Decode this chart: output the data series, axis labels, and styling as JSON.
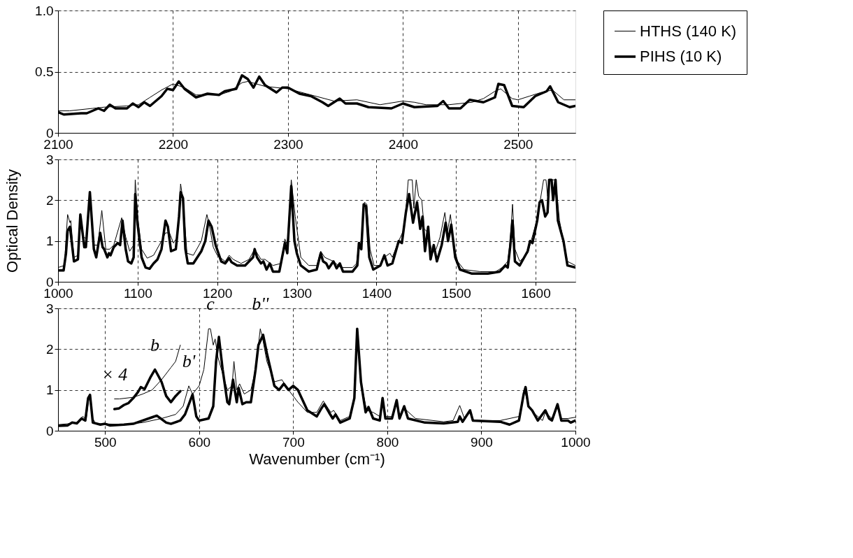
{
  "chart_data": [
    {
      "type": "line",
      "xlim": [
        2100,
        2550
      ],
      "ylim": [
        0,
        1
      ],
      "xticks": [
        2100,
        2200,
        2300,
        2400,
        2500
      ],
      "yticks": [
        0,
        0.5,
        {
          "value": 1,
          "label": "1.0"
        }
      ],
      "grid": true,
      "legend": "right",
      "line_style": "solid",
      "series": [
        {
          "name": "HTHS (140 K)",
          "color": "#000000",
          "x": [
            2100,
            2110,
            2130,
            2140,
            2160,
            2170,
            2180,
            2190,
            2200,
            2210,
            2220,
            2240,
            2250,
            2260,
            2265,
            2280,
            2300,
            2320,
            2340,
            2360,
            2380,
            2400,
            2410,
            2420,
            2440,
            2460,
            2470,
            2480,
            2485,
            2495,
            2500,
            2510,
            2520,
            2530,
            2540,
            2550
          ],
          "values": [
            0.18,
            0.18,
            0.2,
            0.21,
            0.22,
            0.23,
            0.29,
            0.35,
            0.4,
            0.37,
            0.31,
            0.31,
            0.34,
            0.41,
            0.42,
            0.38,
            0.36,
            0.31,
            0.26,
            0.27,
            0.23,
            0.26,
            0.25,
            0.23,
            0.23,
            0.25,
            0.28,
            0.34,
            0.36,
            0.28,
            0.27,
            0.3,
            0.33,
            0.35,
            0.27,
            0.27
          ]
        },
        {
          "name": "PIHS (10 K)",
          "color": "#000000",
          "x": [
            2100,
            2105,
            2120,
            2125,
            2135,
            2140,
            2145,
            2150,
            2160,
            2165,
            2170,
            2175,
            2180,
            2190,
            2195,
            2200,
            2205,
            2210,
            2220,
            2230,
            2240,
            2245,
            2255,
            2260,
            2265,
            2270,
            2275,
            2280,
            2290,
            2295,
            2300,
            2310,
            2320,
            2330,
            2335,
            2345,
            2350,
            2360,
            2370,
            2390,
            2400,
            2410,
            2430,
            2435,
            2440,
            2450,
            2458,
            2470,
            2480,
            2483,
            2488,
            2495,
            2505,
            2515,
            2525,
            2528,
            2535,
            2545,
            2550
          ],
          "values": [
            0.17,
            0.15,
            0.16,
            0.16,
            0.2,
            0.18,
            0.23,
            0.2,
            0.2,
            0.24,
            0.21,
            0.25,
            0.22,
            0.3,
            0.36,
            0.35,
            0.42,
            0.36,
            0.29,
            0.32,
            0.31,
            0.34,
            0.36,
            0.47,
            0.44,
            0.37,
            0.46,
            0.39,
            0.33,
            0.37,
            0.37,
            0.32,
            0.3,
            0.25,
            0.22,
            0.28,
            0.24,
            0.24,
            0.21,
            0.2,
            0.24,
            0.21,
            0.22,
            0.26,
            0.2,
            0.2,
            0.27,
            0.25,
            0.29,
            0.4,
            0.39,
            0.22,
            0.21,
            0.3,
            0.34,
            0.38,
            0.25,
            0.21,
            0.22
          ]
        }
      ]
    },
    {
      "type": "line",
      "xlim": [
        1000,
        1650
      ],
      "ylim": [
        0,
        3
      ],
      "xticks": [
        1000,
        1100,
        1200,
        1300,
        1400,
        1500,
        1600
      ],
      "yticks": [
        0,
        1,
        2,
        3
      ],
      "grid": true,
      "ylabel": "Optical Density",
      "line_style": "solid",
      "series": [
        {
          "color": "#000000",
          "x": [
            1000,
            1008,
            1012,
            1015,
            1016,
            1020,
            1025,
            1028,
            1032,
            1036,
            1040,
            1045,
            1050,
            1055,
            1060,
            1065,
            1070,
            1080,
            1085,
            1090,
            1095,
            1097,
            1100,
            1105,
            1112,
            1120,
            1130,
            1135,
            1140,
            1145,
            1150,
            1154,
            1157,
            1162,
            1170,
            1180,
            1187,
            1190,
            1195,
            1200,
            1210,
            1215,
            1220,
            1230,
            1240,
            1247,
            1255,
            1260,
            1270,
            1280,
            1285,
            1288,
            1293,
            1298,
            1305,
            1315,
            1325,
            1330,
            1335,
            1346,
            1355,
            1370,
            1375,
            1378,
            1381,
            1385,
            1388,
            1392,
            1397,
            1405,
            1410,
            1417,
            1420,
            1428,
            1435,
            1440,
            1445,
            1447,
            1450,
            1453,
            1457,
            1460,
            1465,
            1470,
            1475,
            1480,
            1486,
            1489,
            1493,
            1497,
            1502,
            1510,
            1530,
            1550,
            1558,
            1565,
            1568,
            1571,
            1574,
            1580,
            1590,
            1600,
            1605,
            1610,
            1613,
            1615,
            1618,
            1625,
            1630,
            1640,
            1650
          ],
          "values": [
            0.35,
            0.4,
            1.65,
            1.45,
            1.5,
            0.6,
            0.65,
            1.6,
            1.1,
            1.05,
            2.15,
            0.9,
            0.9,
            1.75,
            0.8,
            0.8,
            0.9,
            1.57,
            1.1,
            0.75,
            0.9,
            2.5,
            1.6,
            0.8,
            0.58,
            0.65,
            1.0,
            1.2,
            1.2,
            0.95,
            1.1,
            2.4,
            2.0,
            0.7,
            0.65,
            1.0,
            1.65,
            1.4,
            0.85,
            0.65,
            0.5,
            0.65,
            0.55,
            0.45,
            0.55,
            0.8,
            0.55,
            0.55,
            0.4,
            0.45,
            1.05,
            0.9,
            2.5,
            1.6,
            0.6,
            0.4,
            0.4,
            0.75,
            0.6,
            0.5,
            0.35,
            0.35,
            0.45,
            0.95,
            1.0,
            1.95,
            1.9,
            0.8,
            0.4,
            0.4,
            0.6,
            0.7,
            0.6,
            1.0,
            1.3,
            2.5,
            2.5,
            1.8,
            2.5,
            2.1,
            2.0,
            1.3,
            1.2,
            0.7,
            0.8,
            1.1,
            1.7,
            1.2,
            1.65,
            0.9,
            0.5,
            0.3,
            0.25,
            0.25,
            0.35,
            0.5,
            1.0,
            1.9,
            0.8,
            0.5,
            0.7,
            1.4,
            1.9,
            2.5,
            2.5,
            2.1,
            2.5,
            2.5,
            1.5,
            0.5,
            0.4
          ]
        },
        {
          "color": "#000000",
          "x": [
            1000,
            1007,
            1010,
            1012,
            1015,
            1020,
            1025,
            1028,
            1033,
            1035,
            1040,
            1045,
            1048,
            1053,
            1056,
            1058,
            1062,
            1064,
            1066,
            1070,
            1075,
            1078,
            1081,
            1085,
            1088,
            1092,
            1095,
            1097,
            1100,
            1105,
            1110,
            1115,
            1120,
            1125,
            1130,
            1135,
            1138,
            1142,
            1148,
            1152,
            1154,
            1157,
            1160,
            1163,
            1170,
            1180,
            1185,
            1189,
            1193,
            1198,
            1205,
            1210,
            1215,
            1218,
            1225,
            1235,
            1245,
            1247,
            1250,
            1255,
            1258,
            1262,
            1266,
            1270,
            1278,
            1285,
            1288,
            1293,
            1297,
            1300,
            1305,
            1315,
            1325,
            1330,
            1333,
            1337,
            1340,
            1346,
            1350,
            1354,
            1358,
            1370,
            1376,
            1378,
            1381,
            1384,
            1387,
            1391,
            1396,
            1405,
            1410,
            1414,
            1420,
            1428,
            1432,
            1437,
            1441,
            1446,
            1451,
            1455,
            1458,
            1461,
            1465,
            1468,
            1472,
            1476,
            1482,
            1487,
            1490,
            1494,
            1499,
            1505,
            1520,
            1540,
            1555,
            1562,
            1565,
            1568,
            1571,
            1574,
            1580,
            1590,
            1593,
            1596,
            1602,
            1605,
            1608,
            1612,
            1615,
            1617,
            1620,
            1622,
            1625,
            1628,
            1635,
            1640,
            1650
          ],
          "values": [
            0.28,
            0.28,
            0.7,
            1.25,
            1.35,
            0.5,
            0.55,
            1.65,
            0.85,
            0.85,
            2.2,
            0.8,
            0.6,
            1.2,
            0.85,
            0.8,
            0.6,
            0.7,
            0.65,
            0.85,
            0.95,
            0.9,
            1.5,
            0.8,
            0.5,
            0.45,
            0.6,
            2.15,
            1.4,
            0.6,
            0.35,
            0.32,
            0.45,
            0.55,
            0.8,
            1.5,
            1.35,
            0.75,
            0.8,
            1.6,
            2.2,
            2.05,
            0.8,
            0.45,
            0.45,
            0.75,
            1.0,
            1.5,
            1.35,
            0.9,
            0.5,
            0.45,
            0.58,
            0.48,
            0.4,
            0.4,
            0.6,
            0.8,
            0.6,
            0.45,
            0.5,
            0.3,
            0.45,
            0.25,
            0.25,
            0.95,
            0.7,
            2.35,
            1.0,
            0.7,
            0.4,
            0.25,
            0.3,
            0.7,
            0.5,
            0.45,
            0.33,
            0.5,
            0.33,
            0.45,
            0.25,
            0.25,
            0.4,
            0.95,
            0.8,
            1.9,
            1.85,
            0.6,
            0.3,
            0.4,
            0.65,
            0.4,
            0.45,
            1.0,
            0.95,
            1.7,
            2.15,
            1.45,
            1.95,
            1.3,
            1.6,
            0.75,
            1.35,
            0.55,
            0.9,
            0.5,
            0.9,
            1.45,
            1.0,
            1.4,
            0.6,
            0.3,
            0.2,
            0.2,
            0.25,
            0.4,
            0.35,
            0.85,
            1.5,
            0.5,
            0.4,
            0.75,
            1.0,
            0.95,
            1.5,
            1.95,
            2.0,
            1.6,
            1.7,
            2.5,
            2.5,
            2.0,
            2.5,
            1.5,
            1.0,
            0.4,
            0.35
          ]
        }
      ]
    },
    {
      "type": "line",
      "xlim": [
        450,
        1000
      ],
      "ylim": [
        0,
        3
      ],
      "xticks": [
        500,
        600,
        700,
        800,
        900,
        1000
      ],
      "yticks": [
        0,
        1,
        2,
        3
      ],
      "grid": true,
      "xlabel": "Wavenumber (cm⁻¹)",
      "line_style": "solid",
      "annotations": [
        {
          "text": "× 4",
          "x": 510,
          "y": 0.78
        },
        {
          "text": "b",
          "x": 553,
          "y": 1.5
        },
        {
          "text": "b'",
          "x": 589,
          "y": 1.1
        },
        {
          "text": "c",
          "x": 612,
          "y": 2.5
        },
        {
          "text": "b''",
          "x": 665,
          "y": 2.5
        }
      ],
      "series": [
        {
          "color": "#000000",
          "x": [
            450,
            460,
            470,
            476,
            480,
            483,
            487,
            490,
            500,
            520,
            540,
            560,
            575,
            583,
            589,
            593,
            600,
            605,
            610,
            612,
            615,
            617,
            620,
            625,
            630,
            635,
            637,
            640,
            643,
            648,
            655,
            660,
            665,
            668,
            672,
            680,
            688,
            695,
            705,
            715,
            725,
            732,
            740,
            743,
            750,
            760,
            765,
            768,
            772,
            778,
            785,
            792,
            795,
            798,
            805,
            810,
            813,
            818,
            830,
            860,
            870,
            877,
            882,
            888,
            892,
            920,
            940,
            946,
            950,
            955,
            965,
            968,
            975,
            981,
            985,
            992,
            1000
          ],
          "values": [
            0.15,
            0.17,
            0.2,
            0.35,
            0.3,
            0.85,
            0.3,
            0.17,
            0.17,
            0.15,
            0.2,
            0.3,
            0.4,
            0.6,
            1.1,
            0.9,
            1.1,
            1.5,
            2.5,
            2.5,
            2.1,
            2.25,
            1.8,
            1.4,
            1.0,
            1.1,
            1.7,
            1.0,
            1.15,
            0.9,
            1.0,
            1.5,
            2.5,
            2.2,
            1.7,
            1.2,
            1.25,
            1.0,
            0.7,
            0.45,
            0.45,
            0.73,
            0.45,
            0.5,
            0.25,
            0.35,
            0.8,
            2.45,
            1.2,
            0.5,
            0.45,
            0.35,
            0.8,
            0.35,
            0.35,
            0.72,
            0.35,
            0.55,
            0.3,
            0.22,
            0.25,
            0.62,
            0.3,
            0.45,
            0.25,
            0.25,
            0.35,
            1.0,
            0.6,
            0.45,
            0.25,
            0.45,
            0.3,
            0.65,
            0.3,
            0.3,
            0.33
          ]
        },
        {
          "color": "#000000",
          "x": [
            450,
            460,
            465,
            470,
            475,
            479,
            482,
            484,
            487,
            495,
            500,
            505,
            520,
            530,
            540,
            550,
            555,
            565,
            570,
            580,
            585,
            593,
            597,
            600,
            610,
            615,
            618,
            621,
            625,
            630,
            632,
            636,
            640,
            642,
            646,
            650,
            655,
            660,
            663,
            668,
            672,
            680,
            685,
            690,
            695,
            700,
            705,
            715,
            725,
            730,
            733,
            738,
            742,
            745,
            750,
            760,
            765,
            768,
            772,
            777,
            780,
            785,
            792,
            795,
            798,
            805,
            810,
            813,
            818,
            822,
            840,
            860,
            875,
            877,
            880,
            888,
            891,
            920,
            930,
            940,
            945,
            947,
            950,
            954,
            960,
            968,
            972,
            975,
            981,
            985,
            992,
            995,
            1000
          ],
          "values": [
            0.12,
            0.13,
            0.2,
            0.18,
            0.3,
            0.25,
            0.8,
            0.88,
            0.2,
            0.15,
            0.17,
            0.13,
            0.15,
            0.17,
            0.25,
            0.33,
            0.37,
            0.2,
            0.17,
            0.25,
            0.4,
            0.89,
            0.35,
            0.25,
            0.3,
            0.6,
            1.7,
            2.3,
            1.5,
            0.7,
            0.65,
            1.25,
            0.7,
            1.05,
            0.65,
            0.7,
            0.7,
            1.5,
            2.1,
            2.35,
            1.9,
            1.1,
            1.0,
            1.15,
            1.0,
            1.1,
            1.0,
            0.5,
            0.35,
            0.55,
            0.65,
            0.45,
            0.3,
            0.4,
            0.2,
            0.3,
            0.8,
            2.5,
            1.2,
            0.45,
            0.58,
            0.3,
            0.25,
            0.8,
            0.3,
            0.3,
            0.75,
            0.3,
            0.6,
            0.3,
            0.2,
            0.18,
            0.22,
            0.35,
            0.22,
            0.5,
            0.25,
            0.22,
            0.15,
            0.25,
            0.9,
            1.07,
            0.6,
            0.5,
            0.25,
            0.5,
            0.3,
            0.25,
            0.65,
            0.25,
            0.25,
            0.2,
            0.25
          ]
        },
        {
          "color": "#000000",
          "x": [
            510,
            515,
            530,
            540,
            550,
            560,
            570,
            575,
            580
          ],
          "values": [
            0.78,
            0.78,
            0.82,
            0.9,
            1.0,
            1.25,
            1.55,
            1.7,
            2.1
          ]
        },
        {
          "color": "#000000",
          "x": [
            510,
            515,
            520,
            525,
            530,
            535,
            538,
            542,
            548,
            553,
            560,
            565,
            570,
            575,
            580
          ],
          "values": [
            0.53,
            0.55,
            0.63,
            0.68,
            0.8,
            0.95,
            1.07,
            1.02,
            1.3,
            1.5,
            1.2,
            0.85,
            0.7,
            0.85,
            0.97
          ]
        }
      ]
    }
  ]
}
